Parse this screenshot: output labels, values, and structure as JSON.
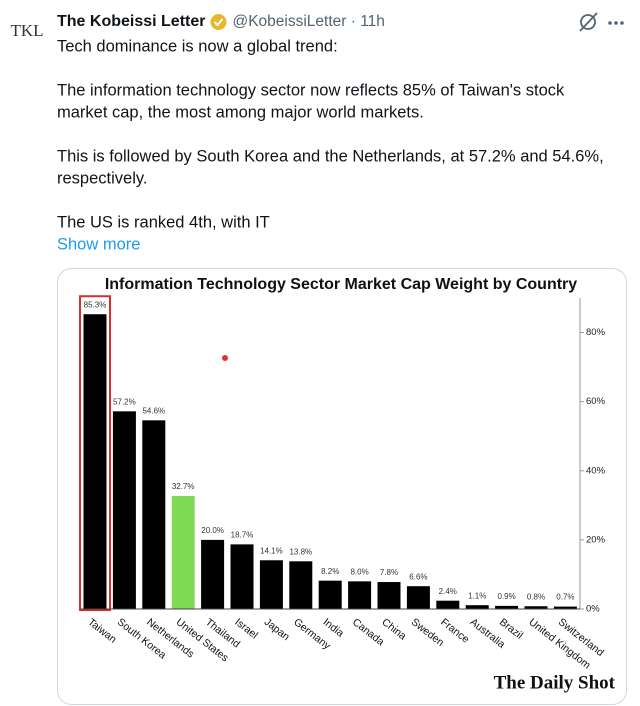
{
  "author": {
    "avatar": "TKL",
    "name": "The Kobeissi Letter",
    "meta": "@KobeissiLetter · 11h"
  },
  "tweet": {
    "lines": [
      [
        "Tech dominance is now a global trend:"
      ],
      [
        "The information technology sector now reflects 85% of Taiwan's stock",
        "market cap, the most among major world markets."
      ],
      [
        "This is followed by South Korea and the Netherlands, at 57.2% and 54.6%,",
        "respectively."
      ],
      [
        "The US is ranked 4th, with IT"
      ]
    ],
    "show_more": "Show more"
  },
  "chart_data": {
    "type": "bar",
    "title": "Information Technology Sector Market Cap Weight by Country",
    "categories": [
      "Taiwan",
      "South Korea",
      "Netherlands",
      "United States",
      "Thailand",
      "Israel",
      "Japan",
      "Germany",
      "India",
      "Canada",
      "China",
      "Sweden",
      "France",
      "Australia",
      "Brazil",
      "United Kingdom",
      "Switzerland"
    ],
    "values": [
      85.3,
      57.2,
      54.6,
      32.7,
      20,
      18.7,
      14.1,
      13.8,
      8.2,
      8,
      7.8,
      6.6,
      2.4,
      1.1,
      0.9,
      0.8,
      0.7
    ],
    "value_labels": [
      "85.3%",
      "57.2%",
      "54.6%",
      "32.7%",
      "20.0%",
      "18.7%",
      "14.1%",
      "13.8%",
      "8.2%",
      "8.0%",
      "7.8%",
      "6.6%",
      "2.4%",
      "1.1%",
      "0.9%",
      "0.8%",
      "0.7%"
    ],
    "colors": [
      "#000000",
      "#000000",
      "#000000",
      "#7ed957",
      "#000000",
      "#000000",
      "#000000",
      "#000000",
      "#000000",
      "#000000",
      "#000000",
      "#000000",
      "#000000",
      "#000000",
      "#000000",
      "#000000",
      "#000000"
    ],
    "highlight_index": 0,
    "highlight_color": "#e02b2b",
    "ylim": [
      0,
      90
    ],
    "yticks": [
      {
        "value": 0,
        "label": "0%"
      },
      {
        "value": 20,
        "label": "20%"
      },
      {
        "value": 40,
        "label": "40%"
      },
      {
        "value": 60,
        "label": "60%"
      },
      {
        "value": 80,
        "label": "80%"
      }
    ],
    "source": "The Daily Shot"
  }
}
